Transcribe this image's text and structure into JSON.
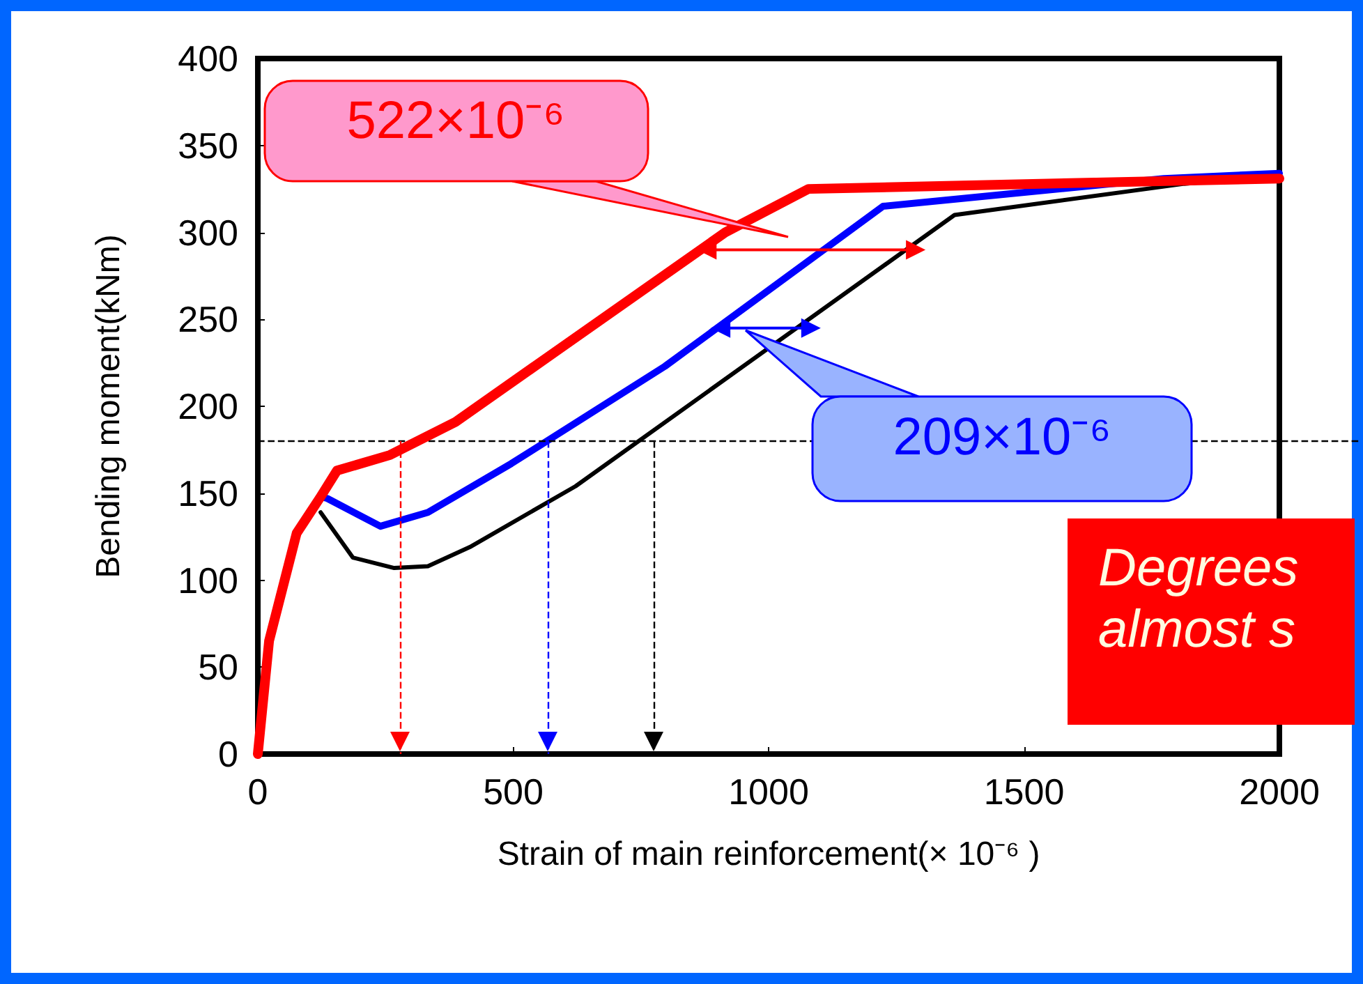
{
  "chart_data": {
    "type": "line",
    "xlabel": "Strain of main reinforcement(× 10⁻⁶ )",
    "ylabel": "Bending moment(kNm)",
    "xlim": [
      0,
      2000
    ],
    "xticks": [
      0,
      500,
      1000,
      1500,
      2000
    ],
    "ylim": [
      0,
      400
    ],
    "yticks": [
      0,
      50,
      100,
      150,
      200,
      250,
      300,
      350,
      400
    ],
    "grid": false,
    "marker": "none",
    "line_style": "solid",
    "series": [
      {
        "color": "#000000",
        "x": [
          123,
          186,
          267,
          333,
          415,
          622,
          1364,
          1814,
          2000
        ],
        "values": [
          139,
          113,
          107,
          108,
          119,
          154,
          310,
          328,
          333
        ]
      },
      {
        "color": "#0000ff",
        "x": [
          123,
          136,
          240,
          333,
          496,
          797,
          1224,
          1774,
          2000
        ],
        "values": [
          148,
          147,
          131,
          139,
          167,
          223,
          315,
          331,
          334
        ]
      },
      {
        "color": "#ff0000",
        "x": [
          0,
          22,
          76,
          123,
          155,
          259,
          387,
          915,
          1078,
          2000
        ],
        "values": [
          0,
          65,
          127,
          148,
          163,
          172,
          191,
          300,
          325,
          331
        ]
      },
      {
        "color": "#ff0000",
        "x": [
          879,
          1288
        ],
        "values": [
          290,
          290
        ],
        "marker": "triangle"
      },
      {
        "color": "#0000ff",
        "x": [
          906,
          1083
        ],
        "values": [
          245,
          245
        ],
        "marker": "triangle"
      }
    ],
    "ref_lines": [
      {
        "axis": "y",
        "value": 180,
        "color": "#000000",
        "line_style": "dashed"
      },
      {
        "axis": "x",
        "value": 278,
        "color": "#ff0000",
        "line_style": "dashed"
      },
      {
        "axis": "x",
        "value": 568,
        "color": "#0000ff",
        "line_style": "dashed"
      },
      {
        "axis": "x",
        "value": 775,
        "color": "#000000",
        "line_style": "dashed"
      }
    ],
    "annotations": [
      "522×10⁻⁶",
      "209×10⁻⁶",
      "Degrees\nalmost s"
    ]
  }
}
